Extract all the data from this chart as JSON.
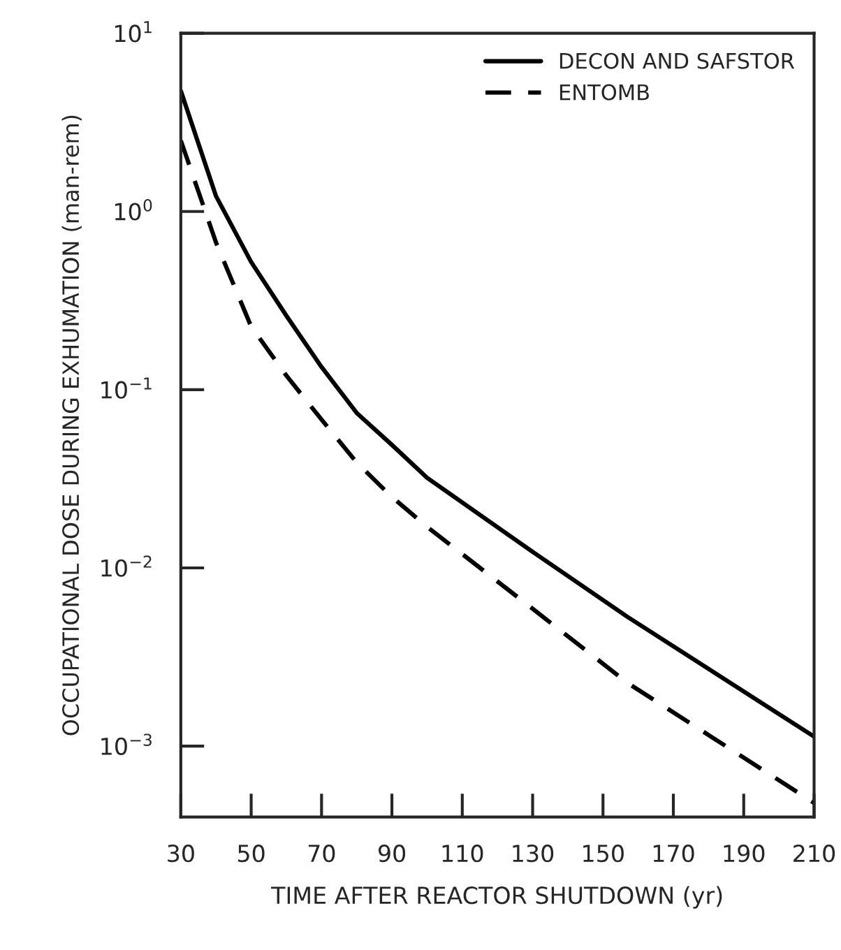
{
  "chart_data": {
    "type": "line",
    "xlabel": "TIME AFTER REACTOR SHUTDOWN (yr)",
    "ylabel": "OCCUPATIONAL DOSE DURING EXHUMATION (man-rem)",
    "x": [
      30,
      40,
      50,
      60,
      70,
      80,
      90,
      100,
      130,
      157,
      210
    ],
    "series": [
      {
        "name": "DECON AND SAFSTOR",
        "color": "#000000",
        "line_style": "solid",
        "values": [
          4.75,
          1.22,
          0.52,
          0.26,
          0.134,
          0.074,
          0.049,
          0.032,
          0.0123,
          0.0053,
          0.00113
        ]
      },
      {
        "name": "ENTOMB",
        "color": "#000000",
        "line_style": "dashed",
        "values": [
          2.5,
          0.67,
          0.226,
          0.12,
          0.068,
          0.039,
          0.025,
          0.017,
          0.0059,
          0.00226,
          0.00048
        ]
      }
    ],
    "log": "y",
    "xlim": [
      30,
      210
    ],
    "ylim": [
      0.0004,
      10
    ],
    "xticks": [
      30,
      50,
      70,
      90,
      110,
      130,
      150,
      170,
      190,
      210
    ],
    "yticks": [
      {
        "value": 0.001,
        "label": "10$^{−3}$"
      },
      {
        "value": 0.01,
        "label": "10$^{−2}$"
      },
      {
        "value": 0.1,
        "label": "10$^{−1}$"
      },
      {
        "value": 1,
        "label": "10$^{0}$"
      },
      {
        "value": 10,
        "label": "10$^{1}$"
      }
    ],
    "grid": false,
    "legend": "top right"
  }
}
